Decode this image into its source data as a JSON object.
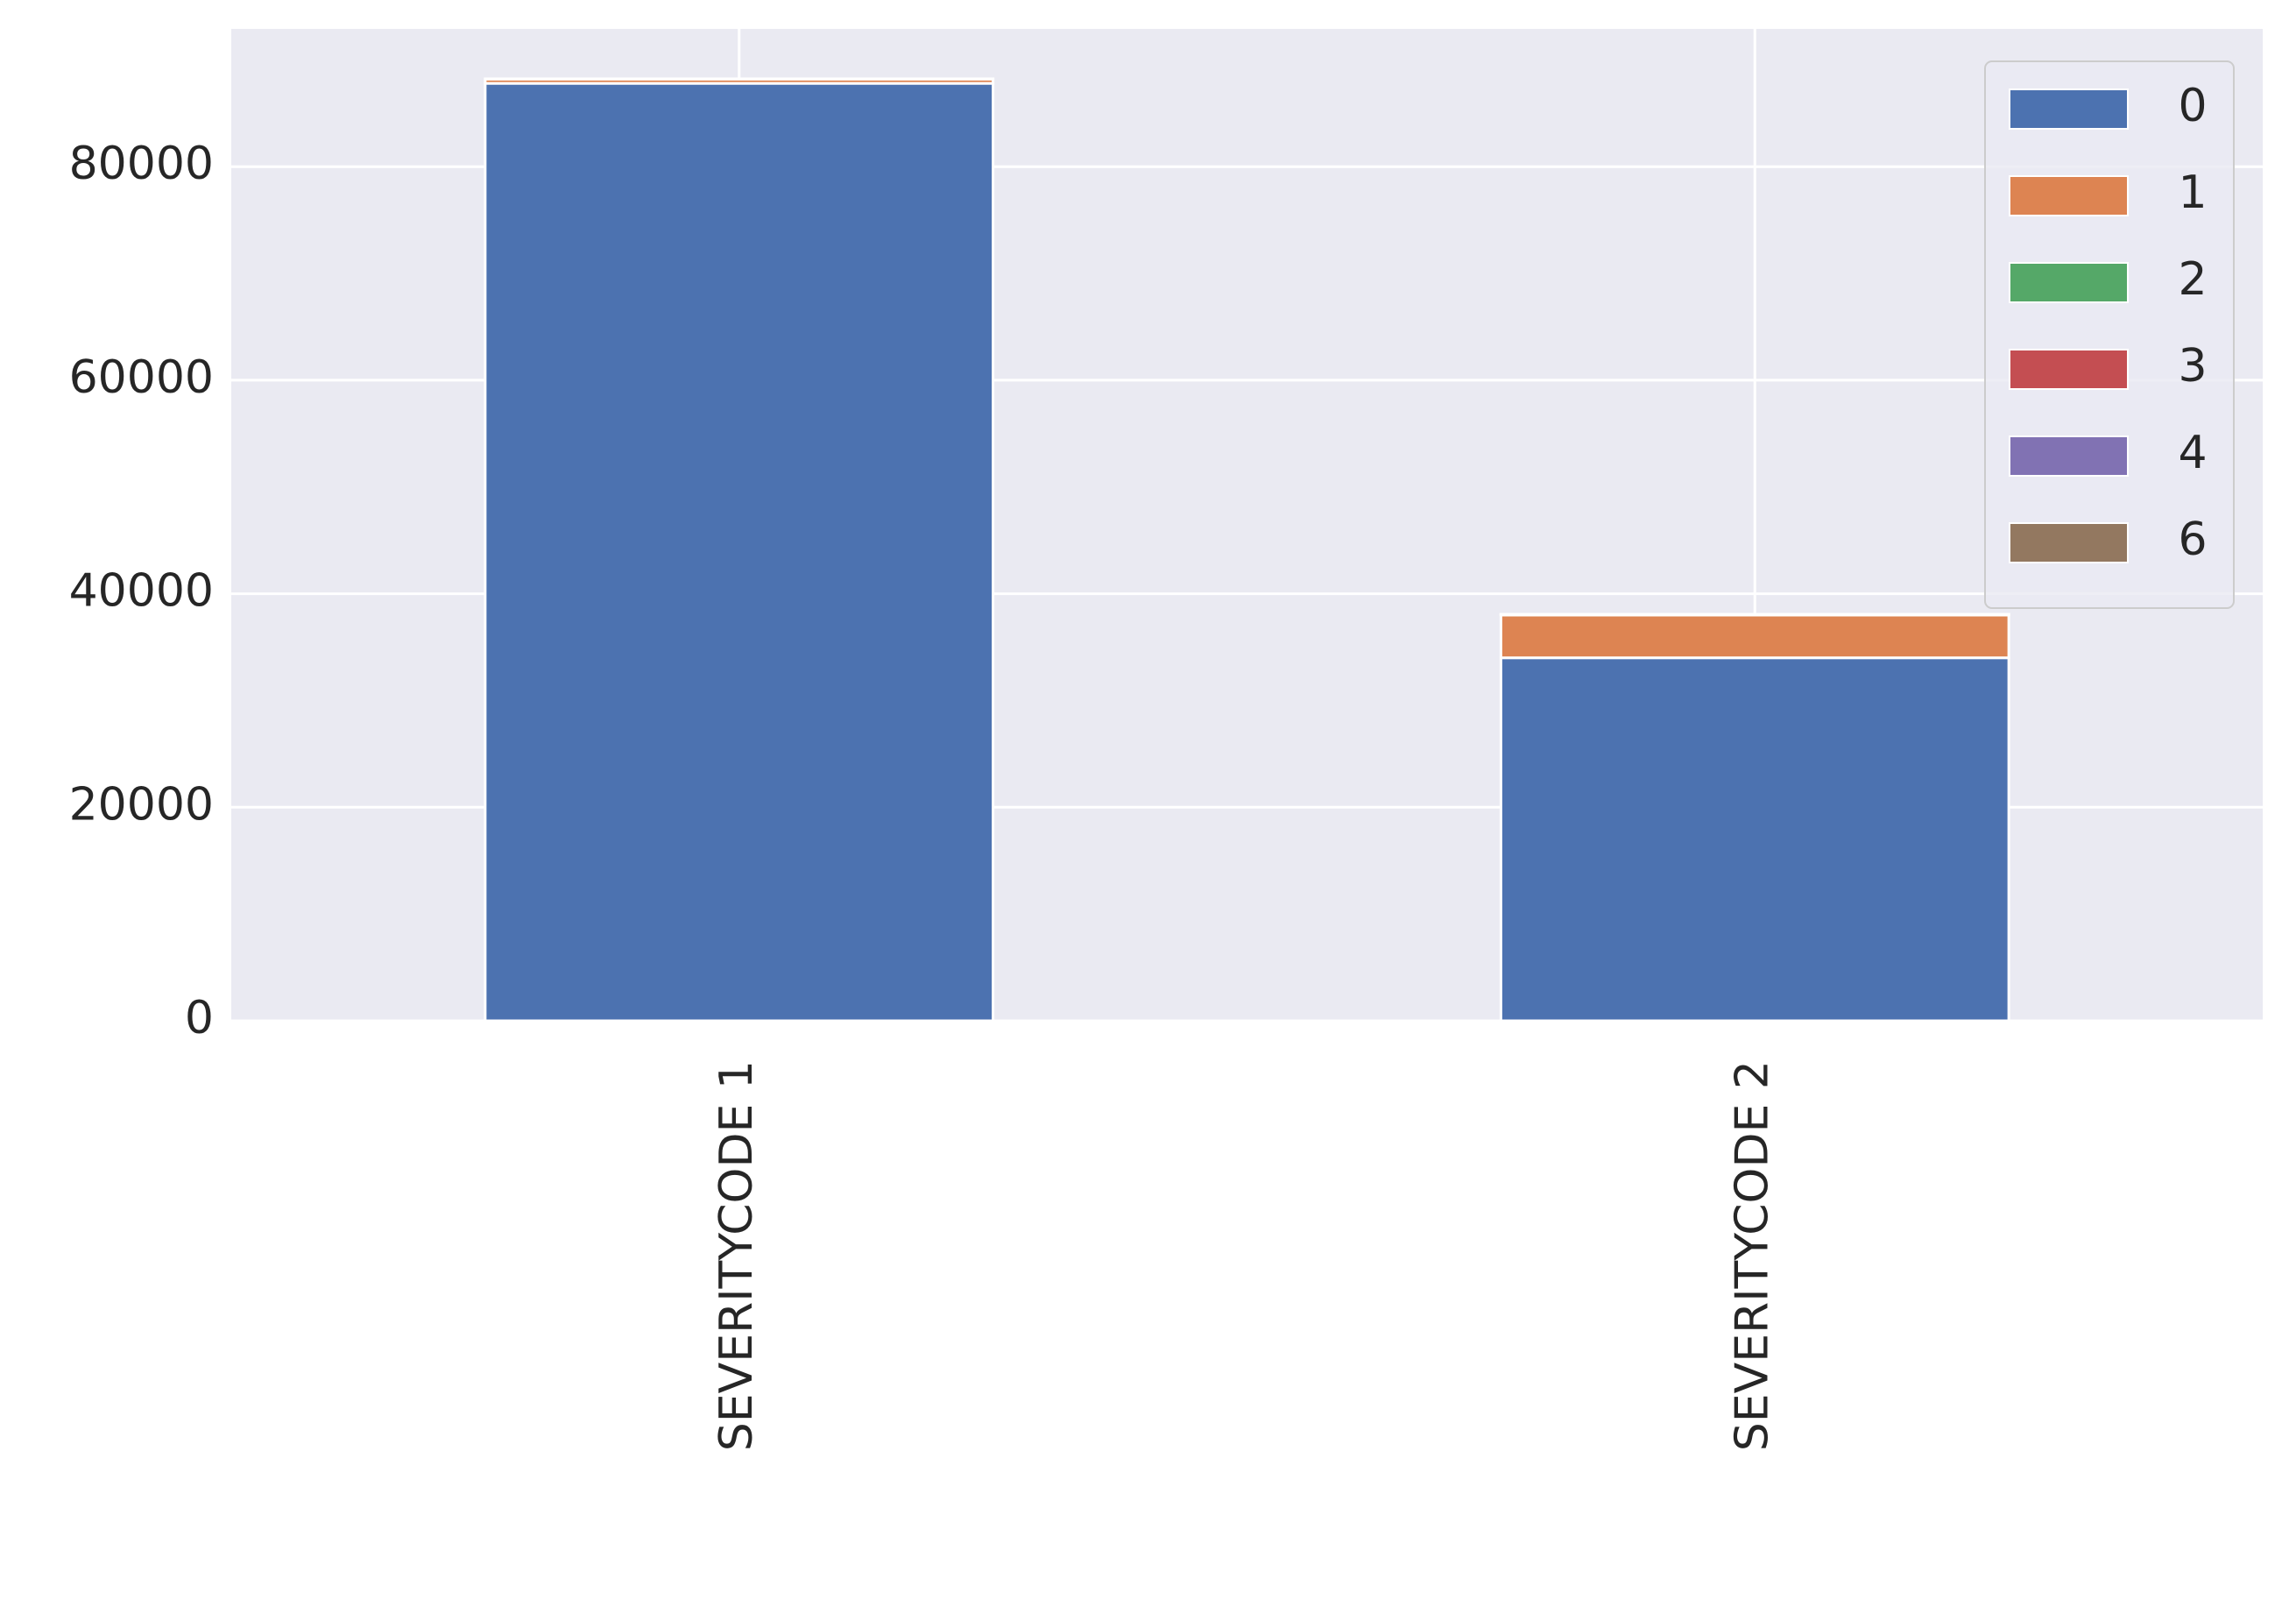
{
  "chart_data": {
    "type": "stacked_bar",
    "categories": [
      "SEVERITYCODE 1",
      "SEVERITYCODE 2"
    ],
    "series": [
      {
        "name": "0",
        "color": "#4c72b0",
        "values": [
          87800,
          34000
        ]
      },
      {
        "name": "1",
        "color": "#dd8452",
        "values": [
          400,
          4000
        ]
      },
      {
        "name": "2",
        "color": "#55a868",
        "values": [
          30,
          50
        ]
      },
      {
        "name": "3",
        "color": "#c44e52",
        "values": [
          0,
          10
        ]
      },
      {
        "name": "4",
        "color": "#8172b3",
        "values": [
          0,
          5
        ]
      },
      {
        "name": "6",
        "color": "#937860",
        "values": [
          0,
          5
        ]
      }
    ],
    "ylim": [
      0,
      92900
    ],
    "yticks": [
      0,
      20000,
      40000,
      60000,
      80000
    ],
    "grid": true,
    "legend": "upper right"
  }
}
